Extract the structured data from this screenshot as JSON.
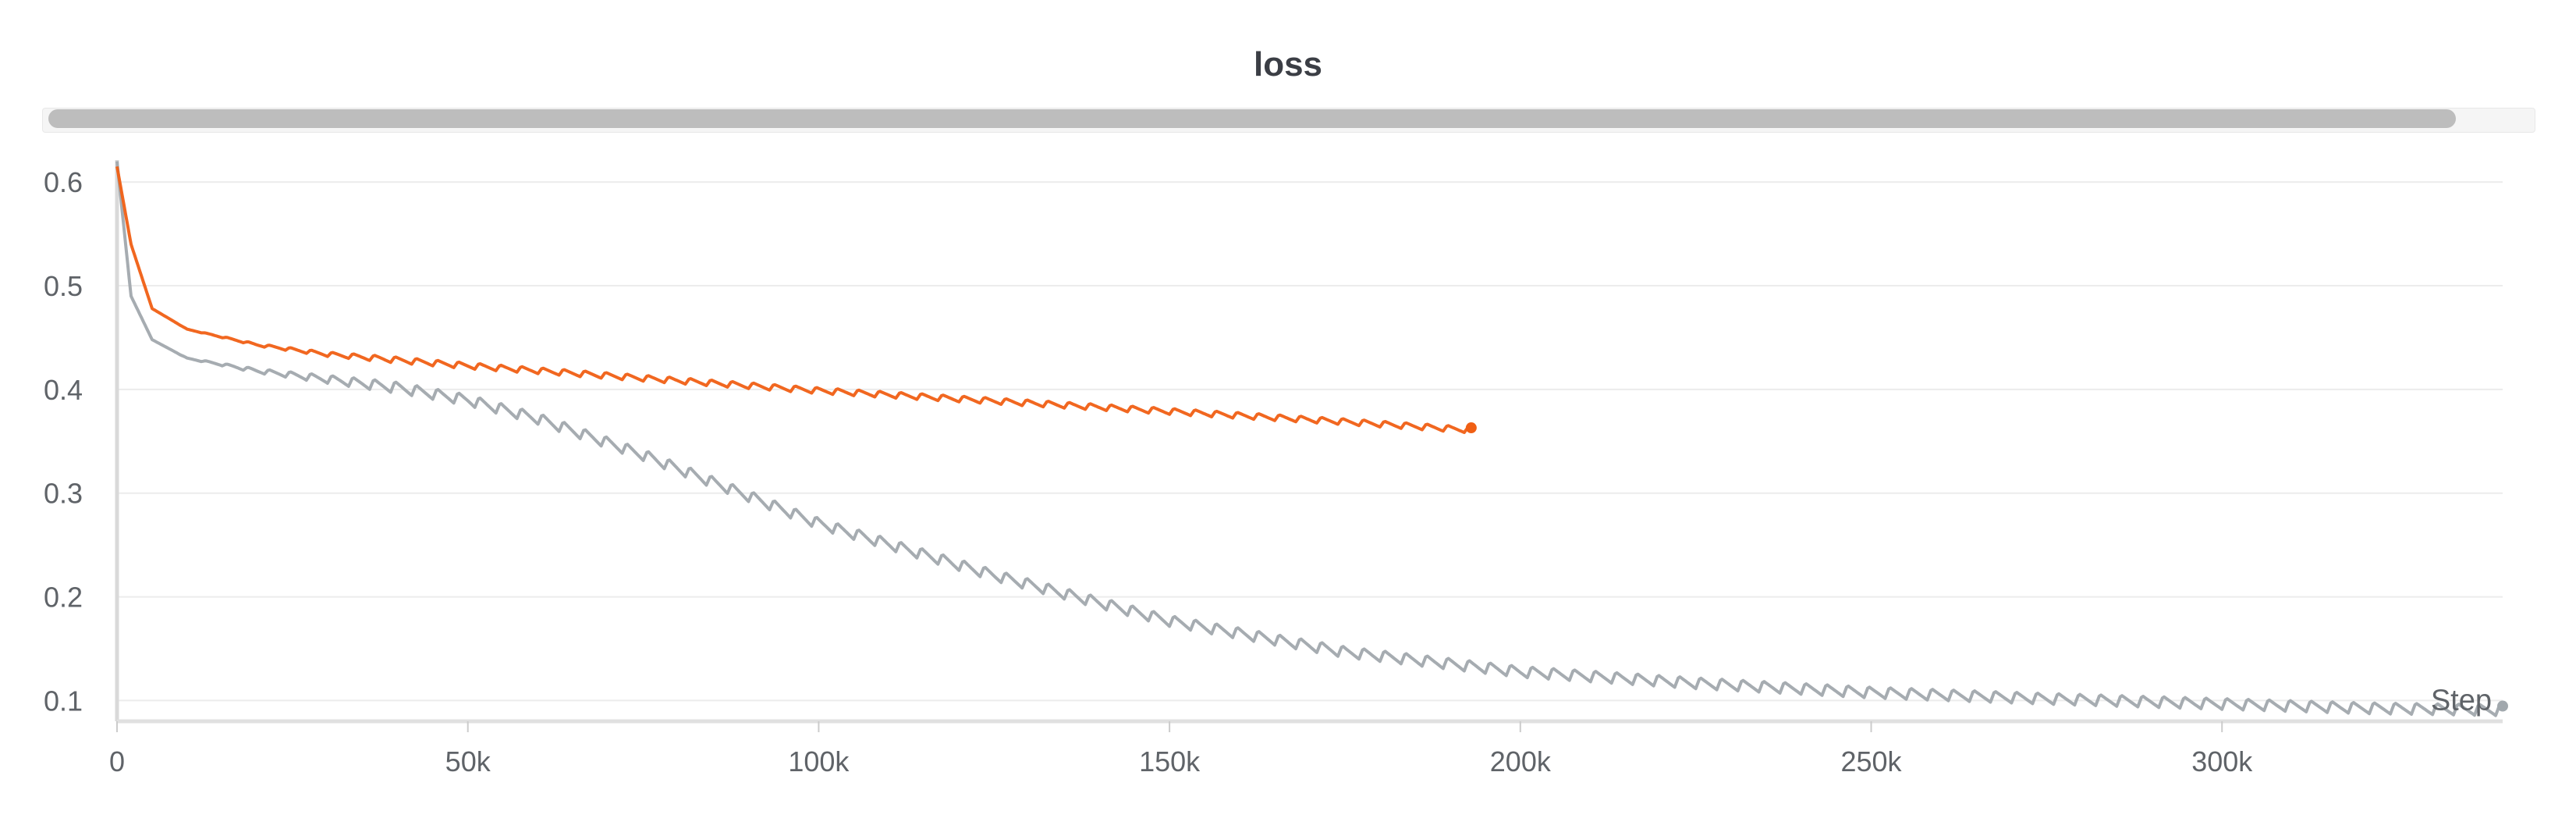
{
  "panel": {
    "title": "loss"
  },
  "chart_data": {
    "type": "line",
    "title": "loss",
    "xlabel": "Step",
    "ylabel": "",
    "xlim": [
      0,
      340000
    ],
    "ylim": [
      0.08,
      0.625
    ],
    "x_ticks": [
      0,
      50000,
      100000,
      150000,
      200000,
      250000,
      300000
    ],
    "x_tick_labels": [
      "0",
      "50k",
      "100k",
      "150k",
      "200k",
      "250k",
      "300k"
    ],
    "y_ticks": [
      0.1,
      0.2,
      0.3,
      0.4,
      0.5,
      0.6
    ],
    "y_tick_labels": [
      "0.1",
      "0.2",
      "0.3",
      "0.4",
      "0.5",
      "0.6"
    ],
    "grid": true,
    "series": [
      {
        "color": "#f05f14",
        "x": [
          0,
          2000,
          5000,
          10000,
          20000,
          30000,
          50000,
          75000,
          100000,
          125000,
          150000,
          175000,
          193000
        ],
        "y": [
          0.615,
          0.54,
          0.478,
          0.458,
          0.443,
          0.434,
          0.423,
          0.411,
          0.399,
          0.389,
          0.379,
          0.369,
          0.361
        ],
        "oscillation": 0.006,
        "end_marker": true
      },
      {
        "color": "#a1a8ad",
        "x": [
          0,
          2000,
          5000,
          10000,
          20000,
          30000,
          40000,
          50000,
          60000,
          75000,
          100000,
          125000,
          150000,
          175000,
          200000,
          225000,
          250000,
          275000,
          300000,
          320000,
          340000
        ],
        "y": [
          0.62,
          0.49,
          0.448,
          0.43,
          0.418,
          0.41,
          0.402,
          0.39,
          0.372,
          0.337,
          0.271,
          0.221,
          0.177,
          0.147,
          0.128,
          0.117,
          0.108,
          0.102,
          0.097,
          0.093,
          0.091
        ],
        "oscillation": 0.011,
        "end_marker": true
      }
    ]
  }
}
